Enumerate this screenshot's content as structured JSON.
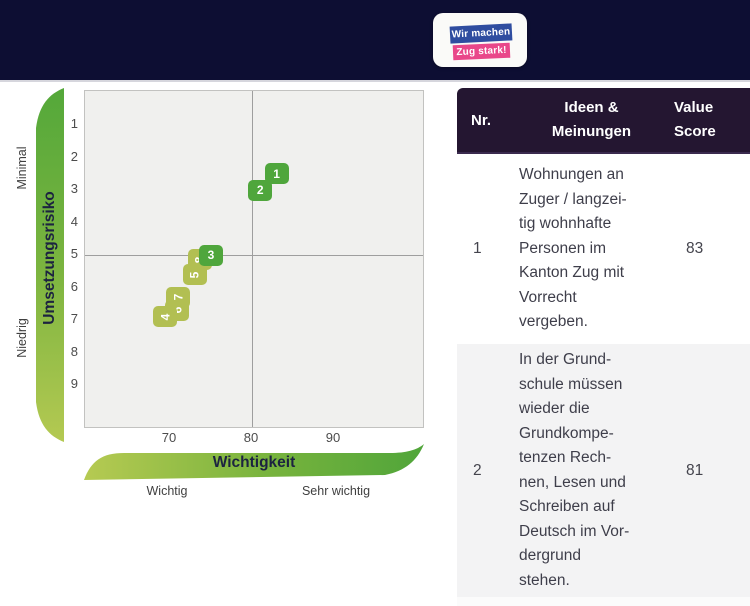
{
  "header": {
    "logo": {
      "line1": "Wir machen",
      "line2": "Zug stark!",
      "line1_bg": "#2f4da0",
      "line2_bg": "#e9478a",
      "band_bg": "#0d0e33"
    }
  },
  "chart_data": {
    "type": "scatter",
    "title": "",
    "xlabel": "Wichtigkeit",
    "ylabel": "Umsetzungsrisiko",
    "x_ticks": [
      70,
      80,
      90
    ],
    "y_ticks": [
      1,
      2,
      3,
      4,
      5,
      6,
      7,
      8,
      9
    ],
    "xlim": [
      59.8,
      101.3
    ],
    "ylim_top_to_bottom": [
      0,
      10.35
    ],
    "quadrant_divider": {
      "x": 80,
      "y": 5
    },
    "x_end_labels": {
      "left": "Wichtig",
      "right": "Sehr wichtig"
    },
    "y_end_labels": {
      "top": "Minimal",
      "bottom": "Niedrig"
    },
    "colors": {
      "dark": "#4fa63c",
      "light": "#b2bf52"
    },
    "points_draw_order": "bottom-to-top",
    "points": [
      {
        "label": "8",
        "x": 73.6,
        "y": 5.15,
        "shade": "light",
        "label_rotated": true
      },
      {
        "label": "5",
        "x": 73.0,
        "y": 5.6,
        "shade": "light",
        "label_rotated": true
      },
      {
        "label": "7",
        "x": 71.0,
        "y": 6.3,
        "shade": "light",
        "label_rotated": true
      },
      {
        "label": "6",
        "x": 70.9,
        "y": 6.7,
        "shade": "light",
        "label_rotated": true
      },
      {
        "label": "4",
        "x": 69.4,
        "y": 6.9,
        "shade": "light",
        "label_rotated": true
      },
      {
        "label": "3",
        "x": 75.0,
        "y": 5.0,
        "shade": "dark",
        "label_rotated": false
      },
      {
        "label": "2",
        "x": 81.0,
        "y": 3.0,
        "shade": "dark",
        "label_rotated": false
      },
      {
        "label": "1",
        "x": 83.0,
        "y": 2.5,
        "shade": "dark",
        "label_rotated": false
      }
    ]
  },
  "table": {
    "columns": [
      "Nr.",
      "Ideen &\nMeinungen",
      "Value\nScore"
    ],
    "rows": [
      {
        "nr": "1",
        "idea": "Wohnungen an\nZuger / langzei-\ntig wohnhafte\nPersonen im\nKanton Zug mit\nVorrecht\nvergeben.",
        "score": "83"
      },
      {
        "nr": "2",
        "idea": "In der Grund-\nschule müssen\nwieder die\nGrundkompe-\ntenzen Rech-\nnen, Lesen und\nSchreiben auf\nDeutsch im Vor-\ndergrund\nstehen.",
        "score": "81"
      }
    ]
  }
}
